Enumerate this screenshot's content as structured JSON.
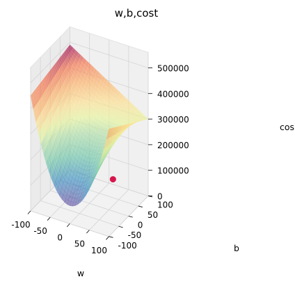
{
  "chart_data": {
    "type": "surface",
    "title": "w,b,cost",
    "xlabel": "w",
    "ylabel": "b",
    "zlabel": "cos",
    "x_ticks": [
      "-100",
      "-50",
      "0",
      "50",
      "100"
    ],
    "y_ticks": [
      "-100",
      "-50",
      "0",
      "50",
      "100"
    ],
    "z_ticks": [
      "0",
      "100000",
      "200000",
      "300000",
      "400000",
      "500000"
    ],
    "xlim": [
      -100,
      100
    ],
    "ylim": [
      -100,
      100
    ],
    "zlim": [
      0,
      500000
    ],
    "grid": true,
    "colormap": "Spectral_r",
    "surface_alpha": 0.6,
    "marker": {
      "w": 10,
      "b": 100,
      "cost": 20000,
      "color": "#d6164b"
    },
    "corner_costs": {
      "w_min_b_min": 450000,
      "w_min_b_max": 490000,
      "w_max_b_min": 420000,
      "w_max_b_max": 300000
    },
    "minimum_cost_along_b_min_edge": 70000
  }
}
